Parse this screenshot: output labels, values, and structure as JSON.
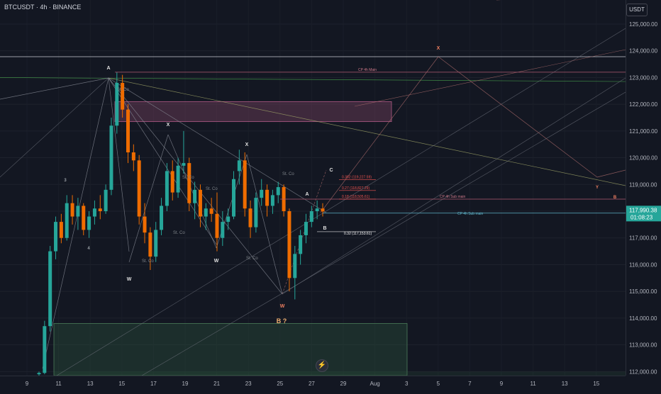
{
  "header": {
    "symbol": "BTCUSDT · 4h · BINANCE",
    "currency": "USDT"
  },
  "price_axis": {
    "ticks": [
      "125,000.00",
      "124,000.00",
      "123,000.00",
      "122,000.00",
      "121,000.00",
      "120,000.00",
      "119,000.00",
      "118,000.00",
      "117,000.00",
      "116,000.00",
      "115,000.00",
      "114,000.00",
      "113,000.00",
      "112,000.00"
    ],
    "tick_values": [
      125000,
      124000,
      123000,
      122000,
      121000,
      120000,
      119000,
      118000,
      117000,
      116000,
      115000,
      114000,
      113000,
      112000
    ],
    "last_price": "117,990.38",
    "countdown": "01:08:23",
    "last_price_value": 117990.38,
    "last_price_color": "#26a69a"
  },
  "time_axis": {
    "labels": [
      "9",
      "11",
      "13",
      "15",
      "17",
      "19",
      "21",
      "23",
      "25",
      "27",
      "29",
      "Aug",
      "3",
      "5",
      "7",
      "9",
      "11",
      "13",
      "15"
    ]
  },
  "colors": {
    "up": "#26a69a",
    "down": "#ef6c00",
    "background": "#131722",
    "resistance_zone": "#8e4a6e",
    "support_zone": "#2f5a3e"
  },
  "chart_data": {
    "type": "candlestick",
    "title": "BTCUSDT · 4h · BINANCE",
    "ylim": [
      111850,
      125900
    ],
    "x_categories": [
      "9",
      "11",
      "13",
      "15",
      "17",
      "19",
      "21",
      "23",
      "25",
      "27",
      "29",
      "Aug",
      "3",
      "5",
      "7",
      "9",
      "11",
      "13",
      "15"
    ],
    "series": [
      {
        "o": 111900,
        "h": 112000,
        "l": 111850,
        "c": 111950
      },
      {
        "o": 111950,
        "h": 113900,
        "l": 111900,
        "c": 113700
      },
      {
        "o": 113700,
        "h": 116700,
        "l": 113500,
        "c": 116500
      },
      {
        "o": 116500,
        "h": 117800,
        "l": 116200,
        "c": 117600
      },
      {
        "o": 117600,
        "h": 117900,
        "l": 116800,
        "c": 117000
      },
      {
        "o": 117000,
        "h": 118600,
        "l": 116900,
        "c": 118300
      },
      {
        "o": 118300,
        "h": 118600,
        "l": 117500,
        "c": 117800
      },
      {
        "o": 117800,
        "h": 118500,
        "l": 117300,
        "c": 118200
      },
      {
        "o": 118200,
        "h": 118300,
        "l": 117100,
        "c": 117300
      },
      {
        "o": 117300,
        "h": 118000,
        "l": 117000,
        "c": 117800
      },
      {
        "o": 117800,
        "h": 118400,
        "l": 117500,
        "c": 118100
      },
      {
        "o": 118100,
        "h": 118600,
        "l": 117700,
        "c": 118000
      },
      {
        "o": 118000,
        "h": 119000,
        "l": 117900,
        "c": 118800
      },
      {
        "o": 118800,
        "h": 121500,
        "l": 118600,
        "c": 121200
      },
      {
        "o": 121200,
        "h": 123200,
        "l": 120900,
        "c": 122800
      },
      {
        "o": 122800,
        "h": 123100,
        "l": 121500,
        "c": 121800
      },
      {
        "o": 121800,
        "h": 122000,
        "l": 119800,
        "c": 120200
      },
      {
        "o": 120200,
        "h": 120500,
        "l": 119500,
        "c": 119900
      },
      {
        "o": 119900,
        "h": 120100,
        "l": 117500,
        "c": 117800
      },
      {
        "o": 117800,
        "h": 118300,
        "l": 116800,
        "c": 117200
      },
      {
        "o": 117200,
        "h": 117400,
        "l": 115800,
        "c": 116300
      },
      {
        "o": 116300,
        "h": 117600,
        "l": 116100,
        "c": 117300
      },
      {
        "o": 117300,
        "h": 118500,
        "l": 117100,
        "c": 118200
      },
      {
        "o": 118200,
        "h": 119800,
        "l": 118000,
        "c": 119500
      },
      {
        "o": 119500,
        "h": 119900,
        "l": 118400,
        "c": 118700
      },
      {
        "o": 118700,
        "h": 120000,
        "l": 118500,
        "c": 119700
      },
      {
        "o": 119700,
        "h": 121000,
        "l": 119400,
        "c": 119800
      },
      {
        "o": 119800,
        "h": 120000,
        "l": 118000,
        "c": 118300
      },
      {
        "o": 118300,
        "h": 119100,
        "l": 117700,
        "c": 118800
      },
      {
        "o": 118800,
        "h": 119000,
        "l": 117400,
        "c": 117800
      },
      {
        "o": 117800,
        "h": 118300,
        "l": 117300,
        "c": 118100
      },
      {
        "o": 118100,
        "h": 118500,
        "l": 117600,
        "c": 117900
      },
      {
        "o": 117900,
        "h": 118700,
        "l": 116500,
        "c": 117000
      },
      {
        "o": 117000,
        "h": 118000,
        "l": 116700,
        "c": 117600
      },
      {
        "o": 117600,
        "h": 118100,
        "l": 117300,
        "c": 117800
      },
      {
        "o": 117800,
        "h": 119500,
        "l": 117700,
        "c": 119200
      },
      {
        "o": 119500,
        "h": 120300,
        "l": 119000,
        "c": 119900
      },
      {
        "o": 119900,
        "h": 120200,
        "l": 117800,
        "c": 118100
      },
      {
        "o": 118100,
        "h": 118400,
        "l": 117000,
        "c": 117400
      },
      {
        "o": 117400,
        "h": 118700,
        "l": 117200,
        "c": 118500
      },
      {
        "o": 118500,
        "h": 119200,
        "l": 118200,
        "c": 118800
      },
      {
        "o": 118800,
        "h": 119000,
        "l": 117800,
        "c": 118200
      },
      {
        "o": 118200,
        "h": 118800,
        "l": 117900,
        "c": 118600
      },
      {
        "o": 118600,
        "h": 119100,
        "l": 118300,
        "c": 118900
      },
      {
        "o": 118900,
        "h": 119000,
        "l": 117800,
        "c": 118000
      },
      {
        "o": 118000,
        "h": 118100,
        "l": 115000,
        "c": 115500
      },
      {
        "o": 115500,
        "h": 116700,
        "l": 114700,
        "c": 116400
      },
      {
        "o": 116400,
        "h": 117300,
        "l": 116000,
        "c": 117100
      },
      {
        "o": 117100,
        "h": 117900,
        "l": 116800,
        "c": 117600
      },
      {
        "o": 117600,
        "h": 118200,
        "l": 117400,
        "c": 118000
      },
      {
        "o": 118000,
        "h": 118400,
        "l": 117700,
        "c": 118100
      },
      {
        "o": 118100,
        "h": 118300,
        "l": 117800,
        "c": 117990
      }
    ],
    "zones": [
      {
        "name": "resistance",
        "top": 122100,
        "bottom": 121350
      },
      {
        "name": "support",
        "top": 113800,
        "bottom": 111850
      }
    ],
    "horizontal_levels": [
      {
        "label": "CP 4h Main",
        "value": 123200
      },
      {
        "label": "CP 4h Sub main",
        "value": 118450
      },
      {
        "label": "CP 4h Sub main",
        "value": 117980
      }
    ],
    "fib_levels": [
      {
        "label": "0.382 (119,227.59)",
        "value": 119227.59
      },
      {
        "label": "0.27 (118,827.29)",
        "value": 118827.29
      },
      {
        "label": "0.18 (118,505.61)",
        "value": 118505.61
      },
      {
        "label": "0.32 (117,153.61)",
        "value": 117153.61
      }
    ],
    "wave_labels": [
      "A",
      "X",
      "X",
      "W",
      "W",
      "X",
      "W",
      "3",
      "4",
      "A",
      "B",
      "C",
      "B ?",
      "X",
      "Y",
      "B",
      "St. Co"
    ]
  }
}
